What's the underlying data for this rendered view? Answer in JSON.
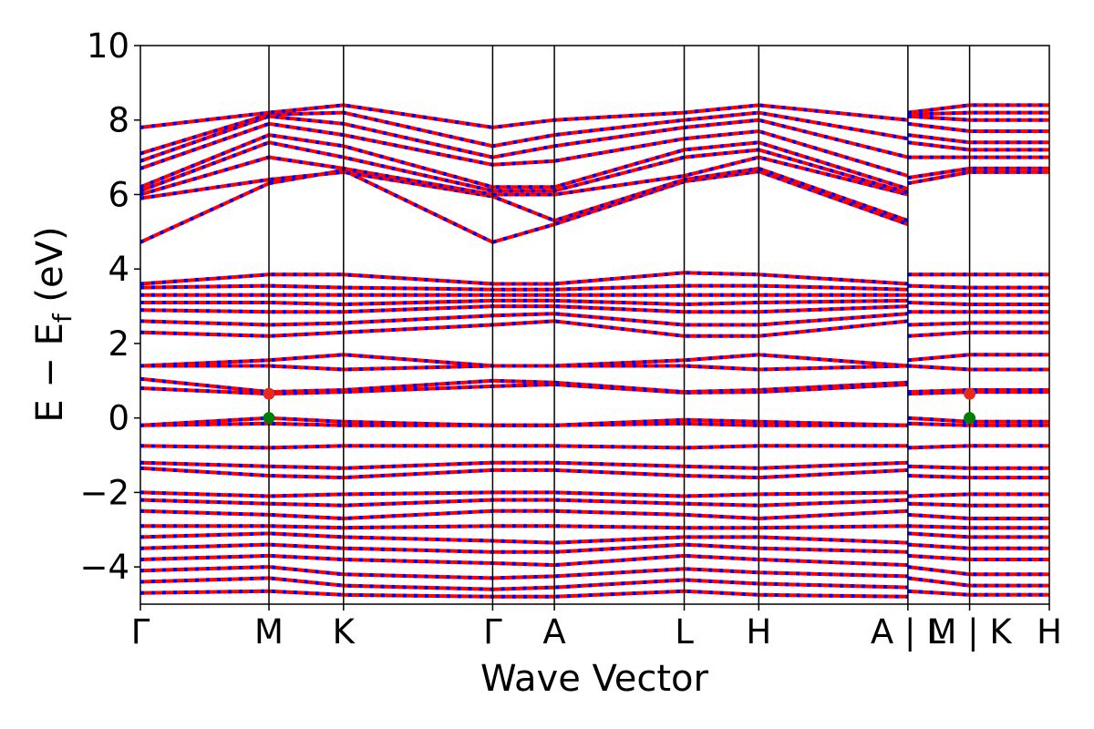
{
  "chart_data": {
    "type": "line",
    "xlabel": "Wave Vector",
    "ylabel_main": "E − E",
    "ylabel_sub": "f",
    "ylabel_unit": " (eV)",
    "ylim": [
      -5,
      10
    ],
    "yticks": [
      -4,
      -2,
      0,
      2,
      4,
      6,
      8,
      10
    ],
    "ytick_labels": [
      "−4",
      "−2",
      "0",
      "2",
      "4",
      "6",
      "8",
      "10"
    ],
    "xlim": [
      0,
      7.07
    ],
    "kpoints": [
      {
        "label": "Γ",
        "x": 0.0
      },
      {
        "label": "M",
        "x": 1.0
      },
      {
        "label": "K",
        "x": 1.58
      },
      {
        "label": "Γ",
        "x": 2.74
      },
      {
        "label": "A",
        "x": 3.22
      },
      {
        "label": "L",
        "x": 4.23
      },
      {
        "label": "H",
        "x": 4.81
      },
      {
        "label": "A | L",
        "x": 5.97
      },
      {
        "label": "M | K",
        "x": 6.45
      },
      {
        "label": "H",
        "x": 7.07
      }
    ],
    "band_colors": {
      "spin_up": "#ff0000",
      "spin_down": "#0000ff"
    },
    "vbm": {
      "x": 1.0,
      "y": 0.0,
      "color": "#008000"
    },
    "cbm": {
      "x": 1.0,
      "y": 0.65,
      "color": "#e8291c"
    },
    "series": [
      {
        "values": [
          4.72,
          6.3,
          6.65,
          4.72,
          5.2,
          6.35,
          6.62,
          5.2,
          6.3,
          6.6,
          6.6
        ]
      },
      {
        "values": [
          5.9,
          6.4,
          6.6,
          5.95,
          5.3,
          6.4,
          6.7,
          5.3,
          6.45,
          6.7,
          6.7
        ]
      },
      {
        "values": [
          6.0,
          7.0,
          6.7,
          6.0,
          6.0,
          6.5,
          7.0,
          6.0,
          7.0,
          7.0,
          7.0
        ]
      },
      {
        "values": [
          6.1,
          7.4,
          7.0,
          6.1,
          6.1,
          7.0,
          7.2,
          6.05,
          7.4,
          7.2,
          7.2
        ]
      },
      {
        "values": [
          6.2,
          7.6,
          7.3,
          6.2,
          6.2,
          7.2,
          7.4,
          6.15,
          7.6,
          7.4,
          7.4
        ]
      },
      {
        "values": [
          6.7,
          7.9,
          7.6,
          6.8,
          6.9,
          7.5,
          7.7,
          6.5,
          7.9,
          7.7,
          7.7
        ]
      },
      {
        "values": [
          6.9,
          8.1,
          7.9,
          7.0,
          7.3,
          7.8,
          8.0,
          7.0,
          8.1,
          8.0,
          8.0
        ]
      },
      {
        "values": [
          7.1,
          8.15,
          8.2,
          7.3,
          7.6,
          8.0,
          8.2,
          7.5,
          8.15,
          8.2,
          8.2
        ]
      },
      {
        "values": [
          7.8,
          8.2,
          8.4,
          7.8,
          8.0,
          8.2,
          8.4,
          8.0,
          8.2,
          8.4,
          8.4
        ]
      },
      {
        "values": [
          2.3,
          2.2,
          2.3,
          2.5,
          2.6,
          2.2,
          2.2,
          2.6,
          2.2,
          2.3,
          2.3
        ]
      },
      {
        "values": [
          2.6,
          2.5,
          2.55,
          2.75,
          2.8,
          2.5,
          2.5,
          2.8,
          2.5,
          2.55,
          2.55
        ]
      },
      {
        "values": [
          2.9,
          2.85,
          2.85,
          3.0,
          3.0,
          2.85,
          2.85,
          3.0,
          2.85,
          2.85,
          2.85
        ]
      },
      {
        "values": [
          3.1,
          3.1,
          3.05,
          3.15,
          3.15,
          3.05,
          3.1,
          3.15,
          3.1,
          3.05,
          3.05
        ]
      },
      {
        "values": [
          3.3,
          3.3,
          3.3,
          3.3,
          3.3,
          3.3,
          3.3,
          3.3,
          3.3,
          3.3,
          3.3
        ]
      },
      {
        "values": [
          3.5,
          3.55,
          3.5,
          3.45,
          3.45,
          3.55,
          3.55,
          3.45,
          3.55,
          3.5,
          3.5
        ]
      },
      {
        "values": [
          3.6,
          3.85,
          3.85,
          3.6,
          3.6,
          3.9,
          3.85,
          3.6,
          3.85,
          3.85,
          3.85
        ]
      },
      {
        "values": [
          1.4,
          1.55,
          1.7,
          1.4,
          1.4,
          1.55,
          1.7,
          1.4,
          1.55,
          1.7,
          1.7
        ]
      },
      {
        "values": [
          1.4,
          1.4,
          1.3,
          1.4,
          1.4,
          1.4,
          1.3,
          1.4,
          1.4,
          1.3,
          1.3
        ]
      },
      {
        "values": [
          1.05,
          0.7,
          0.75,
          1.0,
          0.95,
          0.7,
          0.75,
          0.95,
          0.7,
          0.75,
          0.75
        ]
      },
      {
        "values": [
          0.8,
          0.65,
          0.7,
          0.85,
          0.9,
          0.68,
          0.7,
          0.9,
          0.65,
          0.7,
          0.7
        ]
      },
      {
        "values": [
          -0.2,
          0.0,
          -0.1,
          -0.2,
          -0.2,
          -0.05,
          -0.1,
          -0.2,
          0.0,
          -0.1,
          -0.1
        ]
      },
      {
        "values": [
          -0.2,
          -0.15,
          -0.2,
          -0.2,
          -0.2,
          -0.15,
          -0.2,
          -0.2,
          -0.15,
          -0.2,
          -0.2
        ]
      },
      {
        "values": [
          -0.75,
          -0.8,
          -0.75,
          -0.75,
          -0.75,
          -0.8,
          -0.75,
          -0.75,
          -0.8,
          -0.75,
          -0.75
        ]
      },
      {
        "values": [
          -1.2,
          -1.3,
          -1.35,
          -1.2,
          -1.2,
          -1.3,
          -1.35,
          -1.2,
          -1.3,
          -1.35,
          -1.35
        ]
      },
      {
        "values": [
          -1.35,
          -1.55,
          -1.6,
          -1.4,
          -1.4,
          -1.55,
          -1.6,
          -1.4,
          -1.55,
          -1.6,
          -1.6
        ]
      },
      {
        "values": [
          -2.0,
          -2.1,
          -2.05,
          -2.0,
          -2.0,
          -2.1,
          -2.05,
          -2.0,
          -2.1,
          -2.05,
          -2.05
        ]
      },
      {
        "values": [
          -2.2,
          -2.3,
          -2.35,
          -2.2,
          -2.2,
          -2.3,
          -2.35,
          -2.2,
          -2.3,
          -2.35,
          -2.35
        ]
      },
      {
        "values": [
          -2.5,
          -2.6,
          -2.7,
          -2.5,
          -2.5,
          -2.6,
          -2.7,
          -2.5,
          -2.6,
          -2.7,
          -2.7
        ]
      },
      {
        "values": [
          -2.9,
          -2.9,
          -2.95,
          -2.9,
          -2.9,
          -2.95,
          -2.95,
          -2.9,
          -2.9,
          -2.95,
          -2.95
        ]
      },
      {
        "values": [
          -3.2,
          -3.1,
          -3.2,
          -3.3,
          -3.35,
          -3.2,
          -3.2,
          -3.35,
          -3.1,
          -3.2,
          -3.2
        ]
      },
      {
        "values": [
          -3.5,
          -3.4,
          -3.5,
          -3.6,
          -3.6,
          -3.4,
          -3.5,
          -3.6,
          -3.4,
          -3.5,
          -3.5
        ]
      },
      {
        "values": [
          -3.8,
          -3.7,
          -3.8,
          -3.9,
          -3.95,
          -3.7,
          -3.8,
          -3.95,
          -3.7,
          -3.8,
          -3.8
        ]
      },
      {
        "values": [
          -4.1,
          -4.0,
          -4.2,
          -4.3,
          -4.25,
          -4.05,
          -4.15,
          -4.25,
          -4.0,
          -4.2,
          -4.2
        ]
      },
      {
        "values": [
          -4.4,
          -4.3,
          -4.5,
          -4.6,
          -4.55,
          -4.35,
          -4.45,
          -4.55,
          -4.3,
          -4.5,
          -4.5
        ]
      },
      {
        "values": [
          -4.7,
          -4.65,
          -4.75,
          -4.8,
          -4.8,
          -4.65,
          -4.75,
          -4.8,
          -4.65,
          -4.75,
          -4.75
        ]
      }
    ]
  }
}
